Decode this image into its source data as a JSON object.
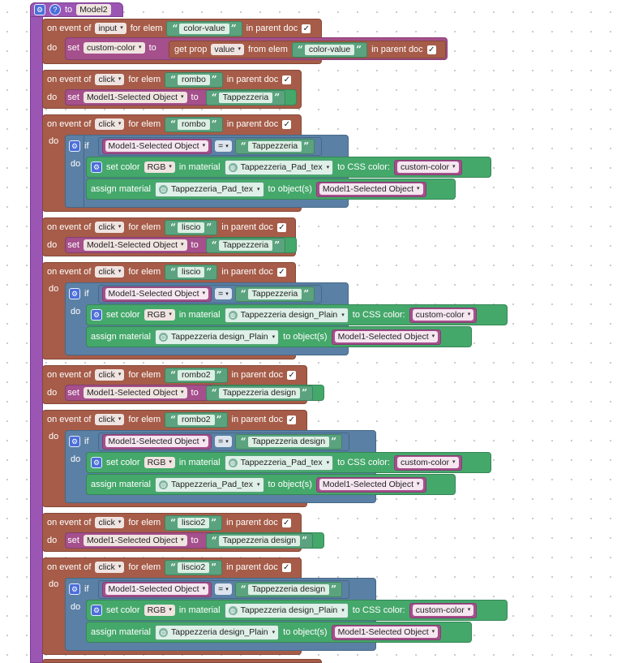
{
  "colors": {
    "procedure": "#9b55b3",
    "event": "#a65c48",
    "control": "#5b80a5",
    "action": "#45a86b",
    "variable": "#a54f8c",
    "text": "#5aa37e"
  },
  "header": {
    "to_label": "to",
    "procedure_name": "Model2",
    "settings_icon": "gear-icon",
    "help_icon": "help-icon"
  },
  "labels": {
    "on_event_of": "on event of",
    "for_elem": "for elem",
    "in_parent_doc": "in parent doc",
    "do": "do",
    "set": "set",
    "to": "to",
    "get_prop": "get prop",
    "from_elem": "from elem",
    "if": "if",
    "set_color": "set color",
    "in_material": "in material",
    "to_css_color": "to CSS color:",
    "assign_material": "assign material",
    "to_objects": "to object(s)",
    "quote_open": "“",
    "quote_close": "”",
    "checkmark": "✓",
    "dropdown_arrow": "▾"
  },
  "block1": {
    "event": "input",
    "elem": "color-value",
    "var": "custom-color",
    "prop": "value",
    "from_elem": "color-value"
  },
  "block2": {
    "event": "click",
    "elem": "rombo",
    "var": "Model1-Selected Object",
    "value": "Tappezzeria"
  },
  "block3": {
    "event": "click",
    "elem": "rombo",
    "cond_var": "Model1-Selected Object",
    "op": "=",
    "cond_value": "Tappezzeria",
    "color_mode": "RGB",
    "material": "Tappezzeria_Pad_tex",
    "css_var": "custom-color",
    "assign_material": "Tappezzeria_Pad_tex",
    "objects_var": "Model1-Selected Object"
  },
  "block4": {
    "event": "click",
    "elem": "liscio",
    "var": "Model1-Selected Object",
    "value": "Tappezzeria"
  },
  "block5": {
    "event": "click",
    "elem": "liscio",
    "cond_var": "Model1-Selected Object",
    "op": "=",
    "cond_value": "Tappezzeria",
    "color_mode": "RGB",
    "material": "Tappezzeria design_Plain",
    "css_var": "custom-color",
    "assign_material": "Tappezzeria design_Plain",
    "objects_var": "Model1-Selected Object"
  },
  "block6": {
    "event": "click",
    "elem": "rombo2",
    "var": "Model1-Selected Object",
    "value": "Tappezzeria design"
  },
  "block7": {
    "event": "click",
    "elem": "rombo2",
    "cond_var": "Model1-Selected Object",
    "op": "=",
    "cond_value": "Tappezzeria design",
    "color_mode": "RGB",
    "material": "Tappezzeria_Pad_tex",
    "css_var": "custom-color",
    "assign_material": "Tappezzeria_Pad_tex",
    "objects_var": "Model1-Selected Object"
  },
  "block8": {
    "event": "click",
    "elem": "liscio2",
    "var": "Model1-Selected Object",
    "value": "Tappezzeria design"
  },
  "block9": {
    "event": "click",
    "elem": "liscio2",
    "cond_var": "Model1-Selected Object",
    "op": "=",
    "cond_value": "Tappezzeria design",
    "color_mode": "RGB",
    "material": "Tappezzeria design_Plain",
    "css_var": "custom-color",
    "assign_material": "Tappezzeria design_Plain",
    "objects_var": "Model1-Selected Object"
  }
}
